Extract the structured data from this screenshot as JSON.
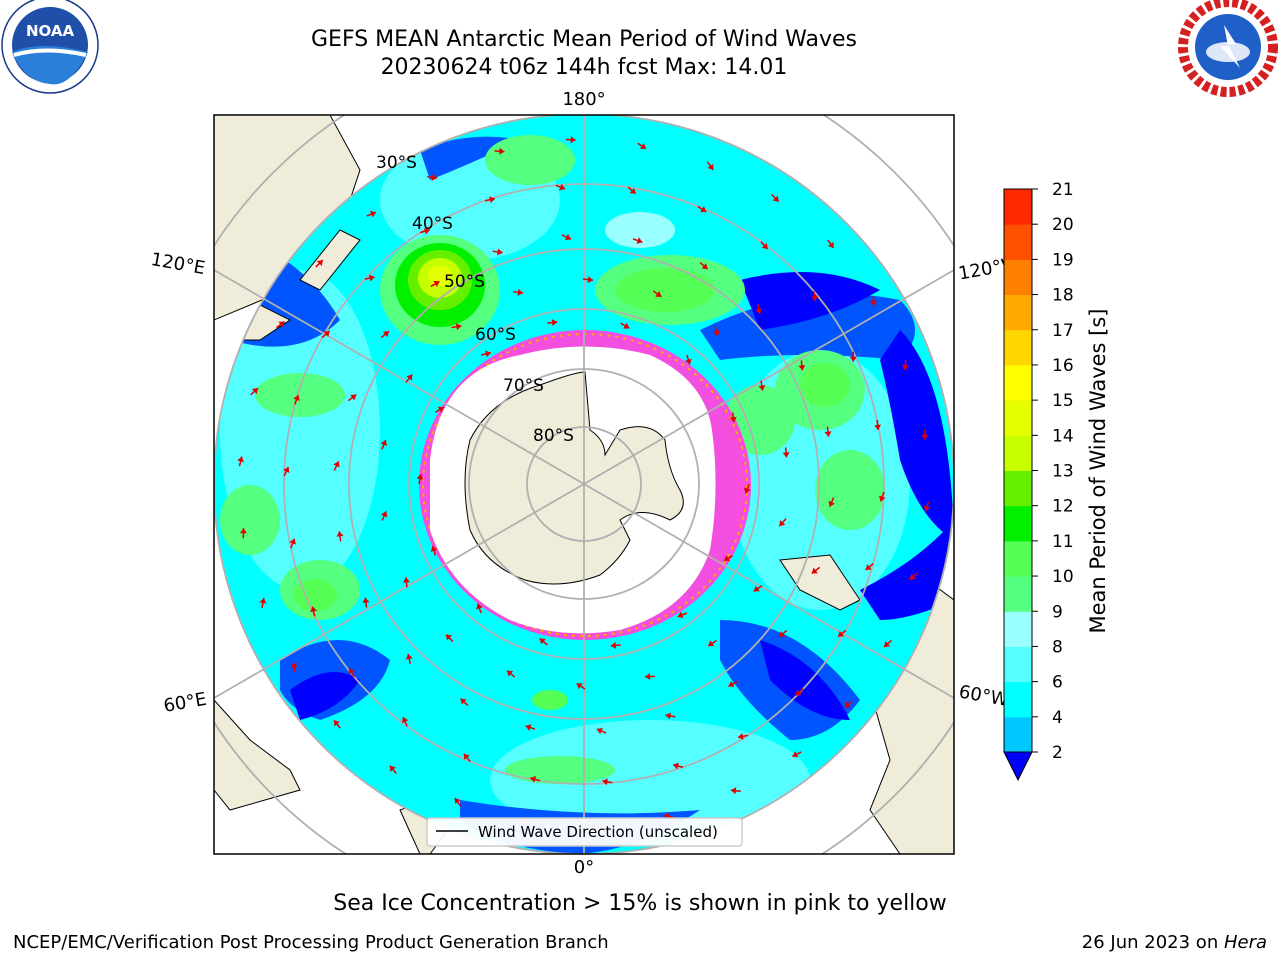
{
  "title": {
    "line1": "GEFS MEAN Antarctic Mean Period of Wind Waves",
    "line2": "20230624 t06z 144h fcst   Max: 14.01"
  },
  "logos": {
    "noaa": {
      "icon": "noaa-logo-icon",
      "text": "NOAA"
    },
    "nws": {
      "icon": "nws-logo-icon"
    }
  },
  "map": {
    "projection": "south-polar-stereographic",
    "longitude_labels": [
      "180°",
      "120°E",
      "120°W",
      "60°E",
      "60°W",
      "0°"
    ],
    "latitude_labels": [
      "30°S",
      "40°S",
      "50°S",
      "60°S",
      "70°S",
      "80°S"
    ],
    "legend_entry": "Wind Wave Direction (unscaled)",
    "colors": {
      "land": "#efecda",
      "ocean_background": "#00ffff",
      "sea_ice": "#ff44dd",
      "grid": "#b0b0b0"
    }
  },
  "colorbar": {
    "label": "Mean Period of Wind Waves [s]",
    "ticks": [
      "2",
      "4",
      "6",
      "8",
      "9",
      "10",
      "11",
      "12",
      "13",
      "14",
      "15",
      "16",
      "17",
      "18",
      "19",
      "20",
      "21"
    ],
    "colors": [
      "#0055ff",
      "#00c8ff",
      "#00ffff",
      "#55ffff",
      "#99ffff",
      "#55ff80",
      "#55ff55",
      "#00f000",
      "#66f000",
      "#c8ff00",
      "#e6ff00",
      "#ffff00",
      "#ffd700",
      "#ffaa00",
      "#ff8000",
      "#ff5000",
      "#ff2800",
      "#ff0000"
    ],
    "extend_min_color": "#0000ff"
  },
  "note": "Sea Ice Concentration > 15% is shown in pink to yellow",
  "footer": {
    "left": "NCEP/EMC/Verification Post Processing Product Generation Branch",
    "right_prefix": "26 Jun 2023 on ",
    "right_host": "Hera"
  }
}
